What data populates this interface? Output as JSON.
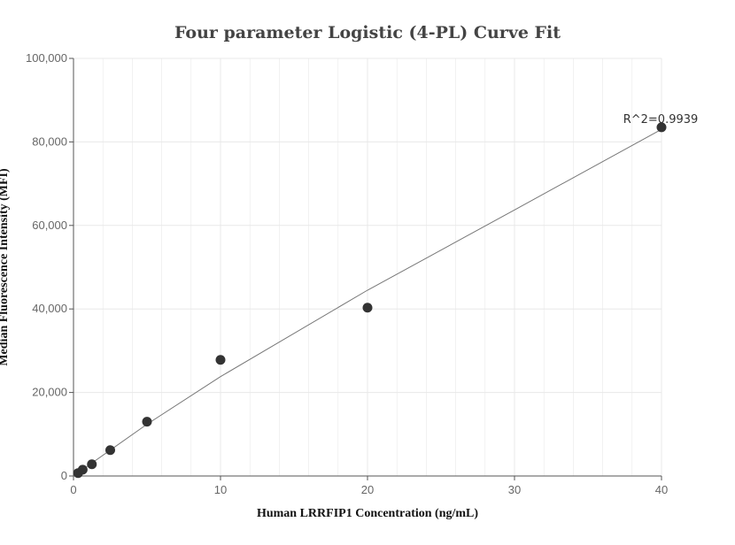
{
  "chart_data": {
    "type": "scatter",
    "title": "Four parameter Logistic (4-PL) Curve Fit",
    "xlabel": "Human LRRFIP1 Concentration (ng/mL)",
    "ylabel": "Median Fluorescence Intensity (MFI)",
    "xlim": [
      0,
      40
    ],
    "ylim": [
      0,
      100000
    ],
    "x_ticks": [
      0,
      10,
      20,
      30,
      40
    ],
    "x_tick_labels": [
      "0",
      "10",
      "20",
      "30",
      "40"
    ],
    "y_ticks": [
      0,
      20000,
      40000,
      60000,
      80000,
      100000
    ],
    "y_tick_labels": [
      "0",
      "20,000",
      "40,000",
      "60,000",
      "80,000",
      "100,000"
    ],
    "grid": true,
    "points": [
      {
        "x": 0.3125,
        "y": 700
      },
      {
        "x": 0.625,
        "y": 1500
      },
      {
        "x": 1.25,
        "y": 2800
      },
      {
        "x": 2.5,
        "y": 6200
      },
      {
        "x": 5,
        "y": 13000
      },
      {
        "x": 10,
        "y": 27800
      },
      {
        "x": 20,
        "y": 40300
      },
      {
        "x": 40,
        "y": 83500
      }
    ],
    "fit_curve": [
      {
        "x": 0,
        "y": 0
      },
      {
        "x": 5,
        "y": 12400
      },
      {
        "x": 10,
        "y": 23800
      },
      {
        "x": 20,
        "y": 44500
      },
      {
        "x": 30,
        "y": 63700
      },
      {
        "x": 40,
        "y": 83000
      }
    ],
    "annotation": "R^2=0.9939",
    "colors": {
      "point": "#333333",
      "line": "#777777",
      "grid": "#e8e8e8",
      "axis": "#555555"
    }
  }
}
